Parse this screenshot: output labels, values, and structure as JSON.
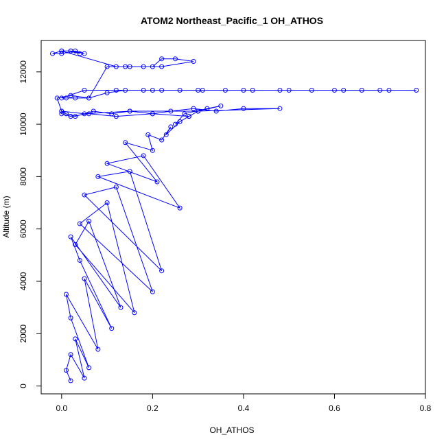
{
  "chart_data": {
    "type": "line",
    "title": "ATOM2 Northeast_Pacific_1 OH_ATHOS",
    "xlabel": "OH_ATHOS",
    "ylabel": "Altitude (m)",
    "xlim": [
      -0.045,
      0.8
    ],
    "ylim": [
      -300,
      13200
    ],
    "xticks": [
      0.0,
      0.2,
      0.4,
      0.6,
      0.8
    ],
    "xtick_labels": [
      "0.0",
      "0.2",
      "0.4",
      "0.6",
      "0.8"
    ],
    "yticks": [
      0,
      2000,
      4000,
      6000,
      8000,
      10000,
      12000
    ],
    "ytick_labels": [
      "0",
      "2000",
      "4000",
      "6000",
      "8000",
      "10000",
      "12000"
    ],
    "grid": false,
    "series_color": "#0000ff",
    "markers": "open-circle",
    "series": [
      {
        "x": [
          0.02,
          0.01,
          0.02,
          0.05,
          0.03,
          0.06,
          0.02,
          0.01,
          0.08,
          0.05,
          0.11,
          0.04,
          0.02,
          0.13,
          0.06,
          0.03,
          0.16,
          0.1,
          0.04,
          0.2,
          0.12,
          0.05,
          0.22,
          0.15,
          0.08,
          0.26,
          0.18,
          0.1,
          0.21,
          0.14,
          0.2,
          0.19,
          0.22,
          0.24,
          0.23,
          0.26,
          0.28,
          0.3,
          0.25,
          0.27,
          0.32,
          0.35,
          0.3,
          0.28,
          0.2,
          0.12,
          0.06,
          0.02,
          0.0,
          0.0,
          0.01,
          0.03,
          0.07,
          0.11,
          0.15,
          0.2,
          0.24,
          0.29,
          0.34,
          0.4,
          0.48,
          0.3,
          0.15,
          0.05,
          0.0,
          -0.01,
          0.02,
          0.06,
          0.1,
          0.14,
          0.18,
          0.22,
          0.26,
          0.31,
          0.36,
          0.42,
          0.48,
          0.55,
          0.6,
          0.66,
          0.72,
          0.78,
          0.7,
          0.62,
          0.5,
          0.4,
          0.3,
          0.2,
          0.12,
          0.05,
          0.0,
          0.01,
          0.03,
          0.06,
          0.1,
          0.14,
          0.18,
          0.2,
          0.22,
          0.25,
          0.29,
          0.22,
          0.15,
          0.12,
          0.0,
          0.02,
          0.05,
          0.03,
          0.0,
          -0.02,
          0.0,
          0.02,
          0.04
        ],
        "y": [
          200,
          600,
          1200,
          300,
          1800,
          700,
          2600,
          3500,
          1400,
          4100,
          2200,
          4800,
          5700,
          3000,
          6300,
          5400,
          2800,
          7000,
          6200,
          3600,
          7600,
          7300,
          4400,
          8200,
          8000,
          6800,
          8800,
          8500,
          7800,
          9300,
          9000,
          9600,
          9400,
          9900,
          9600,
          10100,
          10300,
          10500,
          10000,
          10400,
          10600,
          10700,
          10500,
          10300,
          10400,
          10300,
          10400,
          10300,
          10400,
          10500,
          10400,
          10300,
          10500,
          10400,
          10500,
          10400,
          10500,
          10600,
          10500,
          10600,
          10600,
          10500,
          10500,
          10400,
          10500,
          11000,
          11100,
          11000,
          11200,
          11300,
          11300,
          11300,
          11300,
          11300,
          11300,
          11300,
          11300,
          11300,
          11300,
          11300,
          11300,
          11300,
          11300,
          11300,
          11300,
          11300,
          11300,
          11300,
          11300,
          11300,
          11000,
          11000,
          11000,
          11000,
          12200,
          12200,
          12200,
          12200,
          12500,
          12500,
          12400,
          12200,
          12200,
          12200,
          12800,
          12800,
          12700,
          12800,
          12700,
          12700,
          12800,
          12800,
          12700
        ]
      }
    ]
  }
}
